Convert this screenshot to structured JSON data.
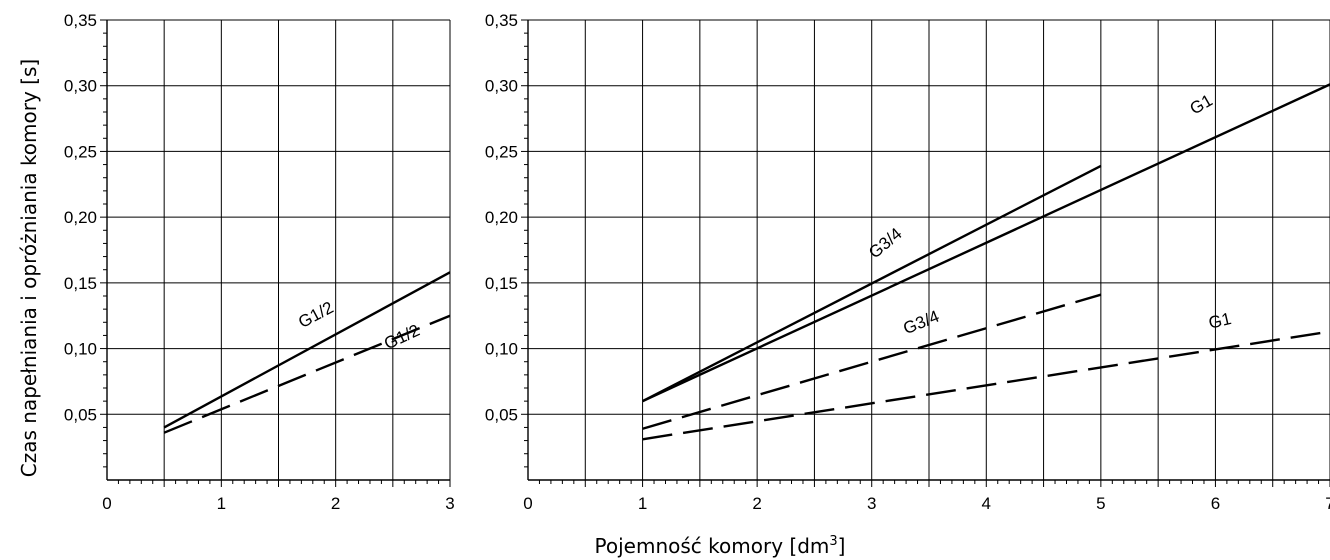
{
  "ylabel": "Czas napełniania i opróżniania komory [s]",
  "xlabel_main": "Pojemność komory [dm",
  "xlabel_sup": "3",
  "xlabel_end": "]",
  "chart_data": [
    {
      "type": "line",
      "title": "",
      "xlabel": "Pojemność komory [dm³]",
      "ylabel": "Czas napełniania i opróżniania komory [s]",
      "xlim": [
        0,
        3
      ],
      "ylim": [
        0,
        0.35
      ],
      "grid": true,
      "xticks": [
        "0",
        "1",
        "2",
        "3"
      ],
      "yticks": [
        "0,05",
        "0,10",
        "0,15",
        "0,20",
        "0,25",
        "0,30",
        "0,35"
      ],
      "series": [
        {
          "name": "G1/2",
          "style": "solid",
          "x": [
            0.5,
            3.0
          ],
          "y": [
            0.04,
            0.158
          ]
        },
        {
          "name": "G1/2",
          "style": "dashed",
          "x": [
            0.5,
            3.0
          ],
          "y": [
            0.036,
            0.125
          ]
        }
      ],
      "annotations": [
        {
          "text": "G1/2",
          "x": 1.85,
          "y": 0.122,
          "angle": -28
        },
        {
          "text": "G1/2",
          "x": 2.6,
          "y": 0.105,
          "angle": -25
        }
      ]
    },
    {
      "type": "line",
      "title": "",
      "xlabel": "Pojemność komory [dm³]",
      "ylabel": "",
      "xlim": [
        0,
        7
      ],
      "ylim": [
        0,
        0.35
      ],
      "grid": true,
      "xticks": [
        "0",
        "1",
        "2",
        "3",
        "4",
        "5",
        "6",
        "7"
      ],
      "yticks": [
        "0,05",
        "0,10",
        "0,15",
        "0,20",
        "0,25",
        "0,30",
        "0,35"
      ],
      "series": [
        {
          "name": "G3/4",
          "style": "solid",
          "x": [
            1.0,
            5.0
          ],
          "y": [
            0.06,
            0.239
          ]
        },
        {
          "name": "G1",
          "style": "solid",
          "x": [
            1.0,
            7.0
          ],
          "y": [
            0.06,
            0.301
          ]
        },
        {
          "name": "G3/4",
          "style": "dashed",
          "x": [
            1.0,
            5.0
          ],
          "y": [
            0.039,
            0.141
          ]
        },
        {
          "name": "G1",
          "style": "dashed",
          "x": [
            1.0,
            7.0
          ],
          "y": [
            0.031,
            0.113
          ]
        }
      ],
      "annotations": [
        {
          "text": "G3/4",
          "x": 3.15,
          "y": 0.177,
          "angle": -40
        },
        {
          "text": "G1",
          "x": 5.9,
          "y": 0.282,
          "angle": -30
        },
        {
          "text": "G3/4",
          "x": 3.45,
          "y": 0.116,
          "angle": -22
        },
        {
          "text": "G1",
          "x": 6.05,
          "y": 0.117,
          "angle": -13
        }
      ]
    }
  ]
}
